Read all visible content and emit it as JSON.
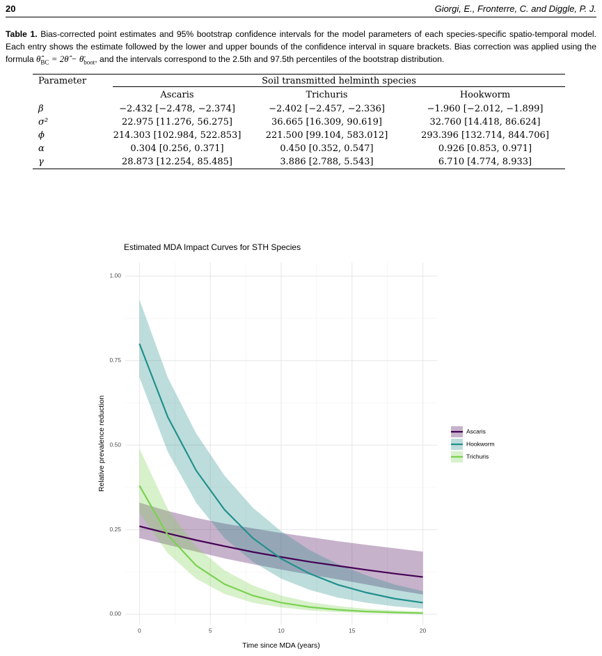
{
  "header": {
    "page_number": "20",
    "authors": "Giorgi, E., Fronterre, C. and Diggle, P. J."
  },
  "caption": {
    "label": "Table 1.",
    "text": "Bias-corrected point estimates and 95% bootstrap confidence intervals for the model parameters of each species-specific spatio-temporal model. Each entry shows the estimate followed by the lower and upper bounds of the confidence interval in square brackets. Bias correction was applied using the formula",
    "formula": {
      "lhs": "θ̂",
      "lhs_sub": "BC",
      "rhs": "= 2θ̂ − θ̄",
      "rhs_sub": "boot"
    },
    "text_after": ", and the intervals correspond to the 2.5th and 97.5th percentiles of the bootstrap distribution."
  },
  "table": {
    "parameter_header": "Parameter",
    "group_header": "Soil transmitted helminth species",
    "species": [
      "Ascaris",
      "Trichuris",
      "Hookworm"
    ],
    "rows": [
      [
        "β",
        "−2.432 [−2.478, −2.374]",
        "−2.402 [−2.457, −2.336]",
        "−1.960 [−2.012, −1.899]"
      ],
      [
        "σ²",
        "22.975 [11.276, 56.275]",
        "36.665 [16.309, 90.619]",
        "32.760 [14.418, 86.624]"
      ],
      [
        "ϕ",
        "214.303 [102.984, 522.853]",
        "221.500 [99.104, 583.012]",
        "293.396 [132.714, 844.706]"
      ],
      [
        "α",
        "0.304 [0.256, 0.371]",
        "0.450 [0.352, 0.547]",
        "0.926 [0.853, 0.971]"
      ],
      [
        "γ",
        "28.873 [12.254, 85.485]",
        "3.886 [2.788, 5.543]",
        "6.710 [4.774, 8.933]"
      ]
    ]
  },
  "chart_data": {
    "type": "line",
    "title": "Estimated MDA Impact Curves for STH Species",
    "x_label": "Time since MDA (years)",
    "y_label": "Relative prevalence reduction",
    "x": [
      0,
      2,
      4,
      6,
      8,
      10,
      12,
      14,
      16,
      18,
      20
    ],
    "series": [
      {
        "name": "Ascaris",
        "color": "#440154",
        "values": [
          0.26,
          0.239,
          0.219,
          0.201,
          0.184,
          0.169,
          0.155,
          0.143,
          0.131,
          0.12,
          0.11
        ],
        "lower": [
          0.225,
          0.205,
          0.185,
          0.165,
          0.148,
          0.132,
          0.117,
          0.103,
          0.088,
          0.072,
          0.058
        ],
        "upper": [
          0.33,
          0.305,
          0.285,
          0.268,
          0.254,
          0.24,
          0.228,
          0.216,
          0.205,
          0.195,
          0.185
        ]
      },
      {
        "name": "Hookworm",
        "color": "#21908c",
        "values": [
          0.8,
          0.583,
          0.425,
          0.309,
          0.225,
          0.164,
          0.12,
          0.087,
          0.064,
          0.046,
          0.034
        ],
        "lower": [
          0.7,
          0.48,
          0.33,
          0.225,
          0.155,
          0.105,
          0.072,
          0.049,
          0.034,
          0.023,
          0.016
        ],
        "upper": [
          0.93,
          0.7,
          0.535,
          0.41,
          0.315,
          0.245,
          0.19,
          0.148,
          0.115,
          0.088,
          0.068
        ]
      },
      {
        "name": "Trichuris",
        "color": "#7ad151",
        "values": [
          0.38,
          0.234,
          0.144,
          0.089,
          0.055,
          0.034,
          0.021,
          0.013,
          0.008,
          0.005,
          0.003
        ],
        "lower": [
          0.3,
          0.18,
          0.105,
          0.06,
          0.034,
          0.02,
          0.011,
          0.006,
          0.003,
          0.002,
          0.001
        ],
        "upper": [
          0.49,
          0.31,
          0.2,
          0.13,
          0.085,
          0.055,
          0.036,
          0.024,
          0.016,
          0.011,
          0.008
        ]
      }
    ],
    "xlim": [
      -1,
      21
    ],
    "ylim": [
      -0.031,
      1.04
    ],
    "xticks": [
      0,
      5,
      10,
      15,
      20
    ],
    "yticks": [
      {
        "value": 0,
        "label": "0.00"
      },
      {
        "value": 0.25,
        "label": "0.25"
      },
      {
        "value": 0.5,
        "label": "0.50"
      },
      {
        "value": 0.75,
        "label": "0.75"
      },
      {
        "value": 1,
        "label": "1.00"
      }
    ],
    "grid": true,
    "legend": "right"
  }
}
